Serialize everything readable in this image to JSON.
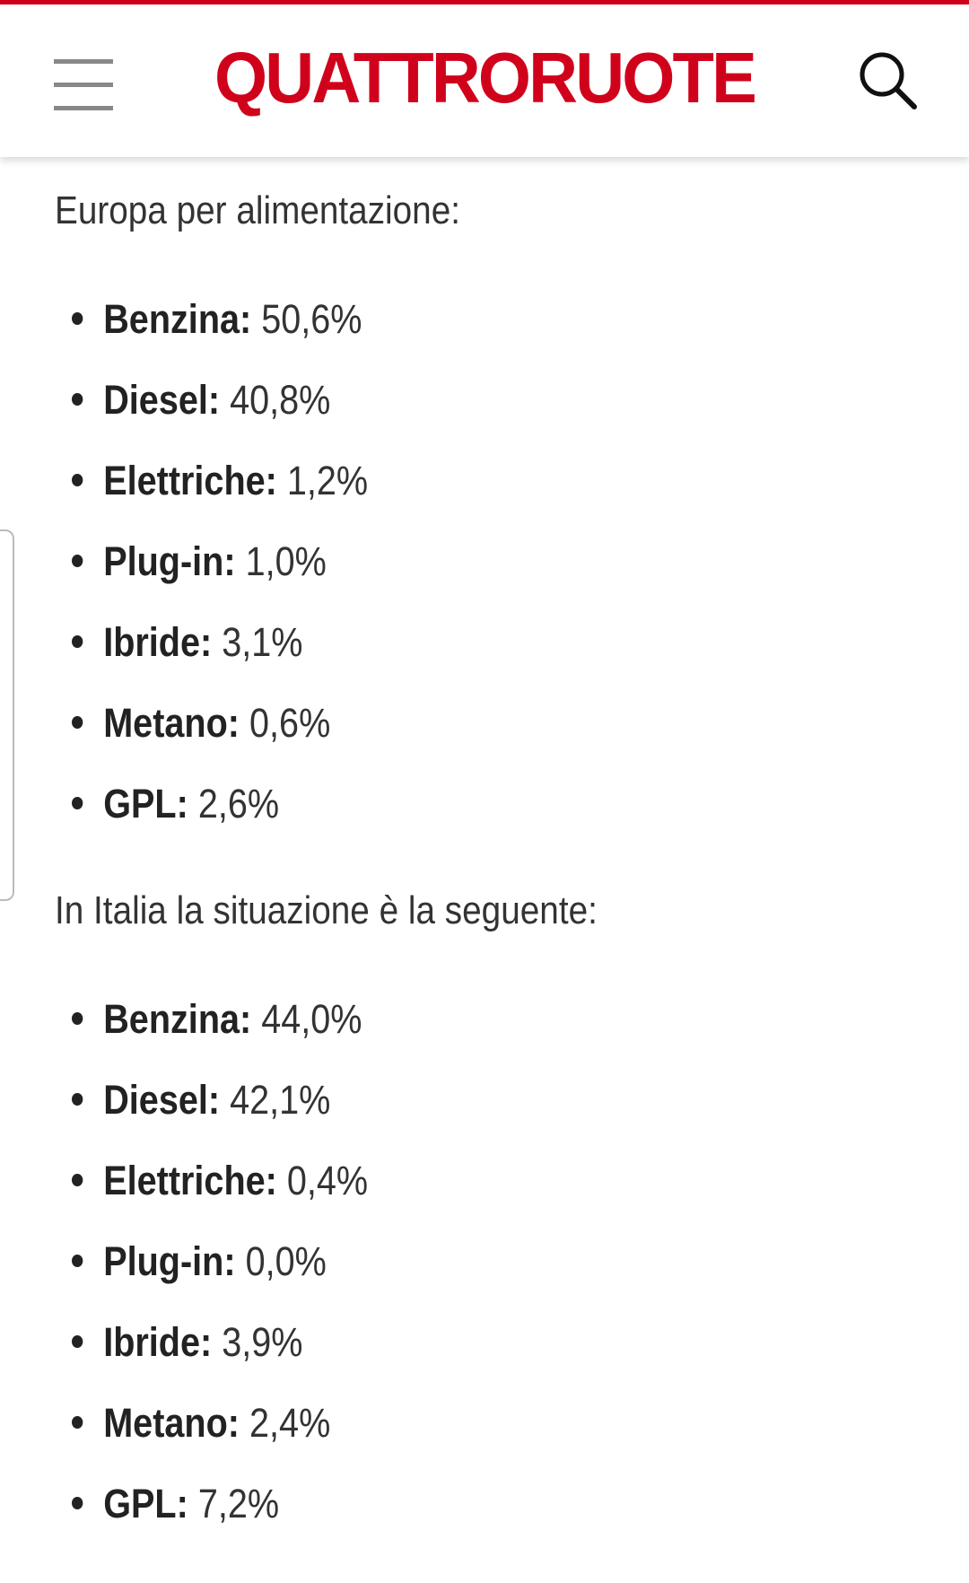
{
  "header": {
    "logo": "QUATTRORUOTE"
  },
  "sections": [
    {
      "intro": "Europa per alimentazione:",
      "items": [
        {
          "label": "Benzina:",
          "value": "50,6%"
        },
        {
          "label": "Diesel:",
          "value": "40,8%"
        },
        {
          "label": "Elettriche:",
          "value": "1,2%"
        },
        {
          "label": "Plug-in:",
          "value": "1,0%"
        },
        {
          "label": "Ibride:",
          "value": "3,1%"
        },
        {
          "label": "Metano:",
          "value": "0,6%"
        },
        {
          "label": "GPL:",
          "value": "2,6%"
        }
      ]
    },
    {
      "intro": "In Italia la situazione è la seguente:",
      "items": [
        {
          "label": "Benzina:",
          "value": "44,0%"
        },
        {
          "label": "Diesel:",
          "value": "42,1%"
        },
        {
          "label": "Elettriche:",
          "value": "0,4%"
        },
        {
          "label": "Plug-in:",
          "value": "0,0%"
        },
        {
          "label": "Ibride:",
          "value": "3,9%"
        },
        {
          "label": "Metano:",
          "value": "2,4%"
        },
        {
          "label": "GPL:",
          "value": "7,2%"
        }
      ]
    }
  ]
}
